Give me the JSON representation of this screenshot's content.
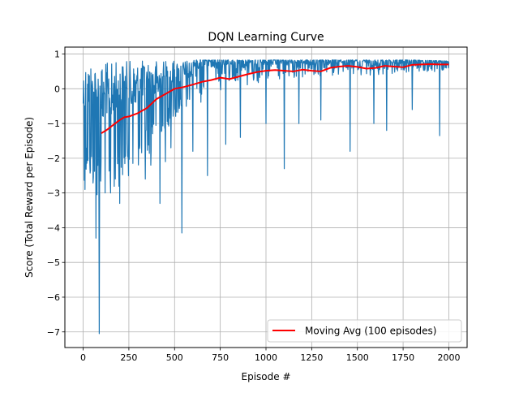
{
  "chart_data": {
    "type": "line",
    "title": "DQN Learning Curve",
    "xlabel": "Episode #",
    "ylabel": "Score (Total Reward per Episode)",
    "xlim": [
      -100,
      2100
    ],
    "ylim": [
      -7.45,
      1.2
    ],
    "x_ticks": [
      0,
      250,
      500,
      750,
      1000,
      1250,
      1500,
      1750,
      2000
    ],
    "x_tick_labels": [
      "0",
      "250",
      "500",
      "750",
      "1000",
      "1250",
      "1500",
      "1750",
      "2000"
    ],
    "y_ticks": [
      1,
      0,
      -1,
      -2,
      -3,
      -4,
      -5,
      -6,
      -7
    ],
    "y_tick_labels": [
      "1",
      "0",
      "−1",
      "−2",
      "−3",
      "−4",
      "−5",
      "−6",
      "−7"
    ],
    "grid": true,
    "legend": {
      "position": "lower-right",
      "entries": [
        "Moving Avg (100 episodes)"
      ]
    },
    "series": [
      {
        "name": "",
        "color": "#1f77b4",
        "style": "raw episode scores (noisy)",
        "band": {
          "x": [
            0,
            50,
            100,
            150,
            200,
            250,
            300,
            350,
            400,
            450,
            500,
            600,
            700,
            800,
            1000,
            1200,
            1400,
            1600,
            1800,
            2000
          ],
          "upper": [
            0.8,
            0.8,
            0.75,
            0.75,
            0.8,
            0.8,
            0.8,
            0.82,
            0.82,
            0.82,
            0.82,
            0.83,
            0.83,
            0.83,
            0.83,
            0.83,
            0.83,
            0.83,
            0.83,
            0.8
          ],
          "lower": [
            -2.6,
            -3.0,
            -3.3,
            -3.1,
            -2.8,
            -2.5,
            -2.3,
            -2.0,
            -1.6,
            -1.2,
            -0.9,
            -0.5,
            -0.3,
            0.0,
            0.15,
            0.3,
            0.35,
            0.4,
            0.45,
            0.5
          ]
        },
        "spikes": [
          {
            "x": 10,
            "y": -2.9
          },
          {
            "x": 25,
            "y": -4.1
          },
          {
            "x": 45,
            "y": -3.1
          },
          {
            "x": 70,
            "y": -4.3
          },
          {
            "x": 88,
            "y": -7.05
          },
          {
            "x": 115,
            "y": -3.2
          },
          {
            "x": 150,
            "y": -3.0
          },
          {
            "x": 175,
            "y": -2.9
          },
          {
            "x": 200,
            "y": -3.3
          },
          {
            "x": 225,
            "y": -4.2
          },
          {
            "x": 245,
            "y": -3.8
          },
          {
            "x": 275,
            "y": -3.2
          },
          {
            "x": 305,
            "y": -2.9
          },
          {
            "x": 340,
            "y": -2.6
          },
          {
            "x": 370,
            "y": -2.2
          },
          {
            "x": 420,
            "y": -3.3
          },
          {
            "x": 450,
            "y": -2.1
          },
          {
            "x": 480,
            "y": -1.7
          },
          {
            "x": 540,
            "y": -4.15
          },
          {
            "x": 600,
            "y": -1.8
          },
          {
            "x": 680,
            "y": -2.5
          },
          {
            "x": 780,
            "y": -1.6
          },
          {
            "x": 860,
            "y": -1.4
          },
          {
            "x": 1000,
            "y": -1.0
          },
          {
            "x": 1100,
            "y": -2.3
          },
          {
            "x": 1180,
            "y": -1.0
          },
          {
            "x": 1300,
            "y": -0.9
          },
          {
            "x": 1460,
            "y": -1.8
          },
          {
            "x": 1590,
            "y": -1.0
          },
          {
            "x": 1660,
            "y": -1.2
          },
          {
            "x": 1800,
            "y": -0.6
          },
          {
            "x": 1950,
            "y": -1.35
          }
        ]
      },
      {
        "name": "Moving Avg (100 episodes)",
        "color": "#ff0000",
        "x": [
          99,
          125,
          150,
          175,
          200,
          225,
          250,
          300,
          350,
          400,
          450,
          500,
          550,
          600,
          650,
          700,
          750,
          800,
          850,
          900,
          950,
          1000,
          1050,
          1100,
          1150,
          1200,
          1250,
          1300,
          1350,
          1400,
          1450,
          1500,
          1550,
          1600,
          1650,
          1700,
          1750,
          1800,
          1850,
          1900,
          1950,
          2000
        ],
        "y": [
          -1.28,
          -1.2,
          -1.1,
          -1.0,
          -0.9,
          -0.82,
          -0.8,
          -0.7,
          -0.55,
          -0.3,
          -0.15,
          0.0,
          0.05,
          0.12,
          0.2,
          0.25,
          0.32,
          0.28,
          0.35,
          0.42,
          0.48,
          0.52,
          0.54,
          0.52,
          0.5,
          0.55,
          0.52,
          0.5,
          0.6,
          0.64,
          0.66,
          0.63,
          0.58,
          0.6,
          0.66,
          0.64,
          0.62,
          0.69,
          0.7,
          0.71,
          0.7,
          0.7
        ]
      }
    ]
  }
}
